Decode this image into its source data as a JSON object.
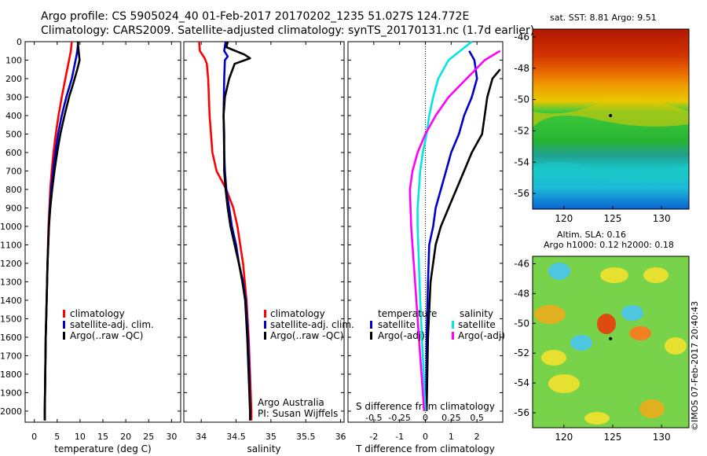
{
  "header": {
    "line1": "Argo profile: CS 5905024_40 01-Feb-2017 20170202_1235 51.027S 124.772E",
    "line2": "Climatology: CARS2009. Satellite-adjusted climatology: synTS_20170131.nc (1.7d earlier)"
  },
  "colors": {
    "climatology": "#ff0000",
    "satellite": "#0000cc",
    "argo": "#000000",
    "sat_salt": "#00e5e5",
    "argo_salt": "#ff00ff"
  },
  "side_texts": {
    "sst_title": "sat. SST: 8.81 Argo: 9.51",
    "sla_line1": "Altim. SLA: 0.16",
    "sla_line2": "Argo h1000: 0.12 h2000: 0.18",
    "credit": "©IMOS 07-Feb-2017 20:40:43",
    "argo_australia": "Argo Australia",
    "pi": "PI: Susan Wijffels"
  },
  "chart_data": [
    {
      "type": "line",
      "id": "temperature",
      "xlabel": "temperature (deg C)",
      "xlim": [
        -2,
        32
      ],
      "xticks": [
        0,
        5,
        10,
        15,
        20,
        25,
        30
      ],
      "ylim": [
        0,
        2060
      ],
      "yticks": [
        0,
        100,
        200,
        300,
        400,
        500,
        600,
        700,
        800,
        900,
        1000,
        1100,
        1200,
        1300,
        1400,
        1500,
        1600,
        1700,
        1800,
        1900,
        2000
      ],
      "legend": [
        "climatology",
        "satellite-adj. clim.",
        "Argo(..raw -QC)"
      ],
      "series": [
        {
          "name": "climatology",
          "color": "#ff0000",
          "points": [
            [
              8.2,
              0
            ],
            [
              8.0,
              50
            ],
            [
              7.6,
              100
            ],
            [
              6.8,
              200
            ],
            [
              6.0,
              300
            ],
            [
              5.3,
              400
            ],
            [
              4.7,
              500
            ],
            [
              4.2,
              600
            ],
            [
              3.8,
              700
            ],
            [
              3.5,
              800
            ],
            [
              3.3,
              900
            ],
            [
              3.1,
              1000
            ],
            [
              2.9,
              1200
            ],
            [
              2.7,
              1400
            ],
            [
              2.5,
              1600
            ],
            [
              2.4,
              1800
            ],
            [
              2.3,
              2000
            ],
            [
              2.3,
              2050
            ]
          ]
        },
        {
          "name": "satellite-adj. clim.",
          "color": "#0000cc",
          "points": [
            [
              9.6,
              0
            ],
            [
              9.4,
              50
            ],
            [
              9.2,
              80
            ],
            [
              8.2,
              200
            ],
            [
              7.0,
              300
            ],
            [
              6.0,
              400
            ],
            [
              5.2,
              500
            ],
            [
              4.6,
              600
            ],
            [
              4.1,
              700
            ],
            [
              3.7,
              800
            ],
            [
              3.4,
              900
            ],
            [
              3.2,
              1000
            ],
            [
              2.9,
              1200
            ],
            [
              2.7,
              1400
            ],
            [
              2.5,
              1600
            ],
            [
              2.4,
              1800
            ],
            [
              2.3,
              2000
            ],
            [
              2.3,
              2050
            ]
          ]
        },
        {
          "name": "Argo(..raw -QC)",
          "color": "#000000",
          "points": [
            [
              9.5,
              0
            ],
            [
              9.7,
              50
            ],
            [
              9.9,
              100
            ],
            [
              9.4,
              150
            ],
            [
              8.6,
              220
            ],
            [
              7.6,
              300
            ],
            [
              6.6,
              400
            ],
            [
              5.7,
              500
            ],
            [
              5.0,
              600
            ],
            [
              4.4,
              700
            ],
            [
              3.9,
              800
            ],
            [
              3.5,
              900
            ],
            [
              3.2,
              1000
            ],
            [
              2.9,
              1200
            ],
            [
              2.7,
              1400
            ],
            [
              2.5,
              1600
            ],
            [
              2.4,
              1800
            ],
            [
              2.3,
              2000
            ],
            [
              2.3,
              2050
            ]
          ]
        }
      ]
    },
    {
      "type": "line",
      "id": "salinity",
      "xlabel": "salinity",
      "xlim": [
        33.75,
        36.05
      ],
      "xticks": [
        34,
        34.5,
        35,
        35.5,
        36
      ],
      "ylim": [
        0,
        2060
      ],
      "legend": [
        "climatology",
        "satellite-adj. clim.",
        "Argo(..raw -QC)"
      ],
      "series": [
        {
          "name": "climatology",
          "color": "#ff0000",
          "points": [
            [
              33.97,
              0
            ],
            [
              33.98,
              50
            ],
            [
              34.05,
              90
            ],
            [
              34.08,
              120
            ],
            [
              34.1,
              200
            ],
            [
              34.12,
              400
            ],
            [
              34.16,
              600
            ],
            [
              34.22,
              700
            ],
            [
              34.36,
              800
            ],
            [
              34.46,
              900
            ],
            [
              34.52,
              1000
            ],
            [
              34.56,
              1100
            ],
            [
              34.6,
              1200
            ],
            [
              34.65,
              1400
            ],
            [
              34.68,
              1600
            ],
            [
              34.7,
              1800
            ],
            [
              34.72,
              2000
            ],
            [
              34.72,
              2050
            ]
          ]
        },
        {
          "name": "satellite-adj. clim.",
          "color": "#0000cc",
          "points": [
            [
              34.35,
              0
            ],
            [
              34.33,
              50
            ],
            [
              34.38,
              80
            ],
            [
              34.34,
              100
            ],
            [
              34.33,
              200
            ],
            [
              34.32,
              400
            ],
            [
              34.33,
              600
            ],
            [
              34.34,
              700
            ],
            [
              34.36,
              800
            ],
            [
              34.4,
              900
            ],
            [
              34.44,
              1000
            ],
            [
              34.5,
              1100
            ],
            [
              34.54,
              1200
            ],
            [
              34.6,
              1300
            ],
            [
              34.64,
              1400
            ],
            [
              34.67,
              1600
            ],
            [
              34.69,
              1800
            ],
            [
              34.7,
              2000
            ],
            [
              34.7,
              2050
            ]
          ]
        },
        {
          "name": "Argo(..raw -QC)",
          "color": "#000000",
          "points": [
            [
              34.38,
              0
            ],
            [
              34.36,
              30
            ],
            [
              34.62,
              70
            ],
            [
              34.7,
              90
            ],
            [
              34.48,
              120
            ],
            [
              34.4,
              200
            ],
            [
              34.34,
              300
            ],
            [
              34.32,
              400
            ],
            [
              34.33,
              500
            ],
            [
              34.33,
              600
            ],
            [
              34.33,
              700
            ],
            [
              34.35,
              800
            ],
            [
              34.38,
              900
            ],
            [
              34.42,
              1000
            ],
            [
              34.48,
              1100
            ],
            [
              34.54,
              1200
            ],
            [
              34.59,
              1300
            ],
            [
              34.63,
              1400
            ],
            [
              34.66,
              1600
            ],
            [
              34.68,
              1800
            ],
            [
              34.7,
              2000
            ],
            [
              34.7,
              2050
            ]
          ]
        }
      ]
    },
    {
      "type": "line",
      "id": "differences",
      "xlabel": "T difference from climatology",
      "top_label": "S difference from climatology",
      "xlim": [
        -3,
        3
      ],
      "xticks": [
        -2,
        -1,
        0,
        1,
        2
      ],
      "top_ticks": [
        "-0.5",
        "-0.25",
        "0",
        "0.25",
        "0.5"
      ],
      "ylim": [
        0,
        2060
      ],
      "legend_titles": [
        "temperature",
        "salinity"
      ],
      "legend": [
        "satellite",
        "Argo(-adj)",
        "satellite",
        "Argo(-adj)"
      ],
      "series": [
        {
          "name": "satellite",
          "color": "#0000cc",
          "points": [
            [
              1.7,
              50
            ],
            [
              1.9,
              100
            ],
            [
              2.0,
              200
            ],
            [
              1.8,
              300
            ],
            [
              1.5,
              400
            ],
            [
              1.3,
              500
            ],
            [
              1.0,
              600
            ],
            [
              0.8,
              700
            ],
            [
              0.6,
              800
            ],
            [
              0.4,
              900
            ],
            [
              0.3,
              1000
            ],
            [
              0.15,
              1100
            ],
            [
              0.1,
              1300
            ],
            [
              0.05,
              1600
            ],
            [
              0.03,
              2000
            ]
          ]
        },
        {
          "name": "Argo(-adj)",
          "color": "#000000",
          "points": [
            [
              2.9,
              150
            ],
            [
              2.6,
              200
            ],
            [
              2.4,
              300
            ],
            [
              2.3,
              400
            ],
            [
              2.2,
              500
            ],
            [
              1.8,
              600
            ],
            [
              1.5,
              700
            ],
            [
              1.2,
              800
            ],
            [
              0.9,
              900
            ],
            [
              0.6,
              1000
            ],
            [
              0.4,
              1100
            ],
            [
              0.2,
              1300
            ],
            [
              0.1,
              1600
            ],
            [
              0.05,
              2000
            ]
          ]
        },
        {
          "name": "satellite",
          "color": "#00e5e5",
          "points": [
            [
              1.8,
              0
            ],
            [
              0.9,
              100
            ],
            [
              0.5,
              200
            ],
            [
              0.3,
              300
            ],
            [
              0.15,
              400
            ],
            [
              0.05,
              500
            ],
            [
              -0.1,
              600
            ],
            [
              -0.2,
              700
            ],
            [
              -0.25,
              800
            ],
            [
              -0.3,
              900
            ],
            [
              -0.3,
              1000
            ],
            [
              -0.25,
              1200
            ],
            [
              -0.2,
              1400
            ],
            [
              -0.1,
              1700
            ],
            [
              0.0,
              2000
            ]
          ]
        },
        {
          "name": "Argo(-adj)",
          "color": "#ff00ff",
          "points": [
            [
              2.9,
              50
            ],
            [
              2.3,
              100
            ],
            [
              1.6,
              200
            ],
            [
              0.9,
              300
            ],
            [
              0.4,
              400
            ],
            [
              0.0,
              500
            ],
            [
              -0.3,
              600
            ],
            [
              -0.5,
              700
            ],
            [
              -0.6,
              800
            ],
            [
              -0.55,
              1000
            ],
            [
              -0.45,
              1200
            ],
            [
              -0.35,
              1400
            ],
            [
              -0.2,
              1700
            ],
            [
              -0.05,
              2000
            ]
          ]
        }
      ]
    },
    {
      "type": "heatmap",
      "id": "sat-sst",
      "title": "sat. SST: 8.81 Argo: 9.51",
      "xticks": [
        120,
        125,
        130
      ],
      "yticks": [
        -46,
        -48,
        -50,
        -52,
        -54,
        -56
      ],
      "xlim": [
        116.8,
        132.8
      ],
      "ylim": [
        -57,
        -45.5
      ],
      "marker": [
        124.772,
        -51.027
      ]
    },
    {
      "type": "heatmap",
      "id": "altim-sla",
      "title": "Altim. SLA: 0.16 / Argo h1000: 0.12 h2000: 0.18",
      "xticks": [
        120,
        125,
        130
      ],
      "yticks": [
        -46,
        -48,
        -50,
        -52,
        -54,
        -56
      ],
      "xlim": [
        116.8,
        132.8
      ],
      "ylim": [
        -57,
        -45.5
      ],
      "marker": [
        124.772,
        -51.027
      ]
    }
  ]
}
